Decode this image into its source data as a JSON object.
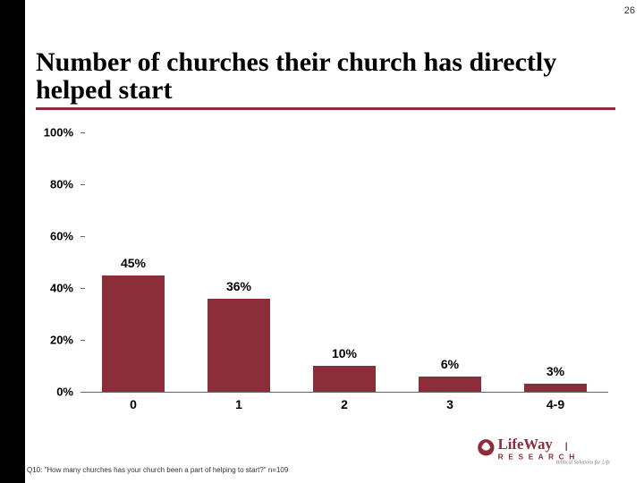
{
  "page_number": "26",
  "title": "Number of churches their church has directly helped start",
  "title_fontsize": 30,
  "title_underline_color": "#8b2e3a",
  "chart": {
    "type": "bar",
    "categories": [
      "0",
      "1",
      "2",
      "3",
      "4-9"
    ],
    "values": [
      45,
      36,
      10,
      6,
      3
    ],
    "value_labels": [
      "45%",
      "36%",
      "10%",
      "6%",
      "3%"
    ],
    "ylim": [
      0,
      100
    ],
    "ytick_step": 20,
    "yticks": [
      "0%",
      "20%",
      "40%",
      "60%",
      "80%",
      "100%"
    ],
    "bar_color": "#8b2e3a",
    "bar_width": 0.6,
    "label_fontsize": 14,
    "tick_fontsize": 13,
    "axis_color": "#666666",
    "background_color": "#ffffff"
  },
  "footnote": "Q10: \"How many churches has your church been a part of helping to start?\" n=109",
  "logo": {
    "brand": "LifeWay",
    "sub": "RESEARCH",
    "tagline": "Biblical Solutions for Life",
    "color": "#8b2e3a"
  }
}
